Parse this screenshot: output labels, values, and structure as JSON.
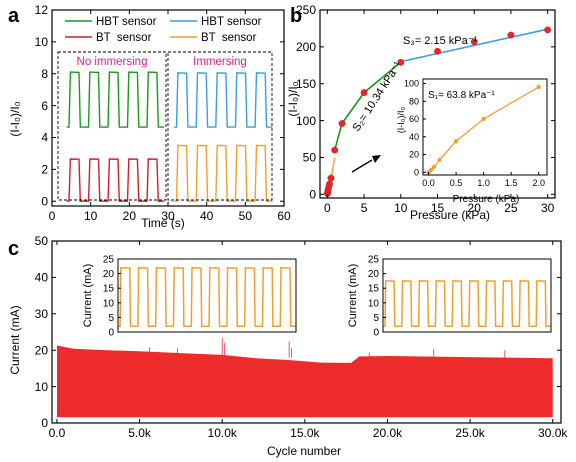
{
  "chart_data": [
    {
      "panel": "a",
      "type": "line",
      "xlabel": "Time (s)",
      "ylabel": "(I-I₀)/I₀",
      "xlim": [
        0,
        60
      ],
      "ylim": [
        -0.3,
        12
      ],
      "xticks": [
        0,
        10,
        20,
        30,
        40,
        50,
        60
      ],
      "yticks": [
        0,
        2,
        4,
        6,
        8,
        10,
        12
      ],
      "legend": [
        {
          "name": "HBT sensor",
          "color": "#1a9a1a"
        },
        {
          "name": "HBT sensor",
          "color": "#3a9ee0"
        },
        {
          "name": "BT  sensor",
          "color": "#d0202a"
        },
        {
          "name": "BT  sensor",
          "color": "#f0a030"
        }
      ],
      "annotations": [
        {
          "text": "No immersing",
          "color": "#e0208a"
        },
        {
          "text": "Immersing",
          "color": "#e0208a"
        }
      ],
      "series": [
        {
          "color": "#1a9a1a",
          "t_start": 3.8,
          "t_end": 29,
          "period": 5.2,
          "baseline": 4.65,
          "peak": 8.1,
          "pulses": 5
        },
        {
          "color": "#d0202a",
          "t_start": 3.8,
          "t_end": 29,
          "period": 5.2,
          "baseline": 0.0,
          "peak": 2.65,
          "pulses": 5
        },
        {
          "color": "#3a9ee0",
          "t_start": 31.6,
          "t_end": 57,
          "period": 5.1,
          "baseline": 4.65,
          "peak": 8.05,
          "pulses": 5
        },
        {
          "color": "#f0a030",
          "t_start": 31.6,
          "t_end": 57,
          "period": 5.1,
          "baseline": 0.0,
          "peak": 3.5,
          "pulses": 5
        }
      ]
    },
    {
      "panel": "b",
      "type": "scatter",
      "xlabel": "Pressure (kPa)",
      "ylabel": "(I-I₀)/I₀",
      "xlim": [
        -1,
        31
      ],
      "ylim": [
        -5,
        250
      ],
      "xticks": [
        0,
        5,
        10,
        15,
        20,
        25,
        30
      ],
      "yticks": [
        0,
        50,
        100,
        150,
        200,
        250
      ],
      "annotations": [
        {
          "text": "S₃= 2.15 kPa⁻¹"
        },
        {
          "text": "S₂= 10.34 kPa⁻¹"
        }
      ],
      "points_x": [
        0.02,
        0.05,
        0.1,
        0.2,
        0.3,
        0.5,
        1,
        2,
        5,
        10,
        15,
        20,
        25,
        30
      ],
      "points_y": [
        1,
        3,
        6,
        10,
        14,
        22,
        60,
        96,
        138,
        179,
        194,
        207,
        216,
        223
      ],
      "fit_low": {
        "x": [
          0,
          0.5,
          1
        ],
        "y": [
          0,
          20,
          50
        ]
      },
      "fit_mid": {
        "x": [
          1,
          10
        ],
        "y": [
          85,
          180
        ],
        "color": "#1a9a1a"
      },
      "fit_high": {
        "x": [
          10,
          30
        ],
        "y": [
          180,
          224
        ],
        "color": "#3a9ee0"
      },
      "inset": {
        "xlabel": "Pressure (kPa)",
        "ylabel": "(I-I₀)/I₀",
        "annotation": "S₁= 63.8 kPa⁻¹",
        "xlim": [
          -0.1,
          2.15
        ],
        "ylim": [
          -3,
          105
        ],
        "xticks": [
          0.0,
          0.5,
          1.0,
          1.5,
          2.0
        ],
        "xtick_labels": [
          "0.0",
          "0.5",
          "1.0",
          "1.5",
          "2.0"
        ],
        "yticks": [
          0,
          20,
          40,
          60,
          80,
          100
        ],
        "x": [
          0.0,
          0.02,
          0.05,
          0.1,
          0.2,
          0.5,
          1.0,
          2.0
        ],
        "y": [
          0,
          1,
          3,
          6,
          14,
          35,
          60,
          96
        ]
      }
    },
    {
      "panel": "c",
      "type": "area",
      "xlabel": "Cycle number",
      "ylabel": "Current (mA)",
      "xlim": [
        -300,
        30500
      ],
      "ylim": [
        0,
        50
      ],
      "xticks": [
        0,
        5000,
        10000,
        15000,
        20000,
        25000,
        30000
      ],
      "xtick_labels": [
        "0.0",
        "5.0k",
        "10.0k",
        "15.0k",
        "20.0k",
        "25.0k",
        "30.0k"
      ],
      "yticks": [
        0,
        10,
        20,
        30,
        40,
        50
      ],
      "color": "#ee2b2b",
      "upper_envelope": {
        "x": [
          0,
          1000,
          3000,
          5000,
          8000,
          10000,
          12000,
          14000,
          16000,
          17800,
          18300,
          20000,
          25000,
          30000
        ],
        "y": [
          21.3,
          20.4,
          20.0,
          19.7,
          19.1,
          18.7,
          17.8,
          17.3,
          16.6,
          16.5,
          18.3,
          18.4,
          18.1,
          17.8
        ]
      },
      "lower_envelope": {
        "x": [
          0,
          30000
        ],
        "y": [
          1.6,
          1.6
        ]
      },
      "insets": [
        {
          "ylabel": "Current (mA)",
          "yticks": [
            0,
            5,
            10,
            15,
            20,
            25
          ],
          "ylim": [
            0,
            25
          ],
          "baseline": 2,
          "peak": 22,
          "pulses": 10,
          "color": "#f0a030"
        },
        {
          "ylabel": "Current (mA)",
          "yticks": [
            0,
            5,
            10,
            15,
            20,
            25
          ],
          "ylim": [
            0,
            25
          ],
          "baseline": 2,
          "peak": 17.5,
          "pulses": 10,
          "color": "#f0a030"
        }
      ]
    }
  ],
  "panel_labels": [
    "a",
    "b",
    "c"
  ]
}
